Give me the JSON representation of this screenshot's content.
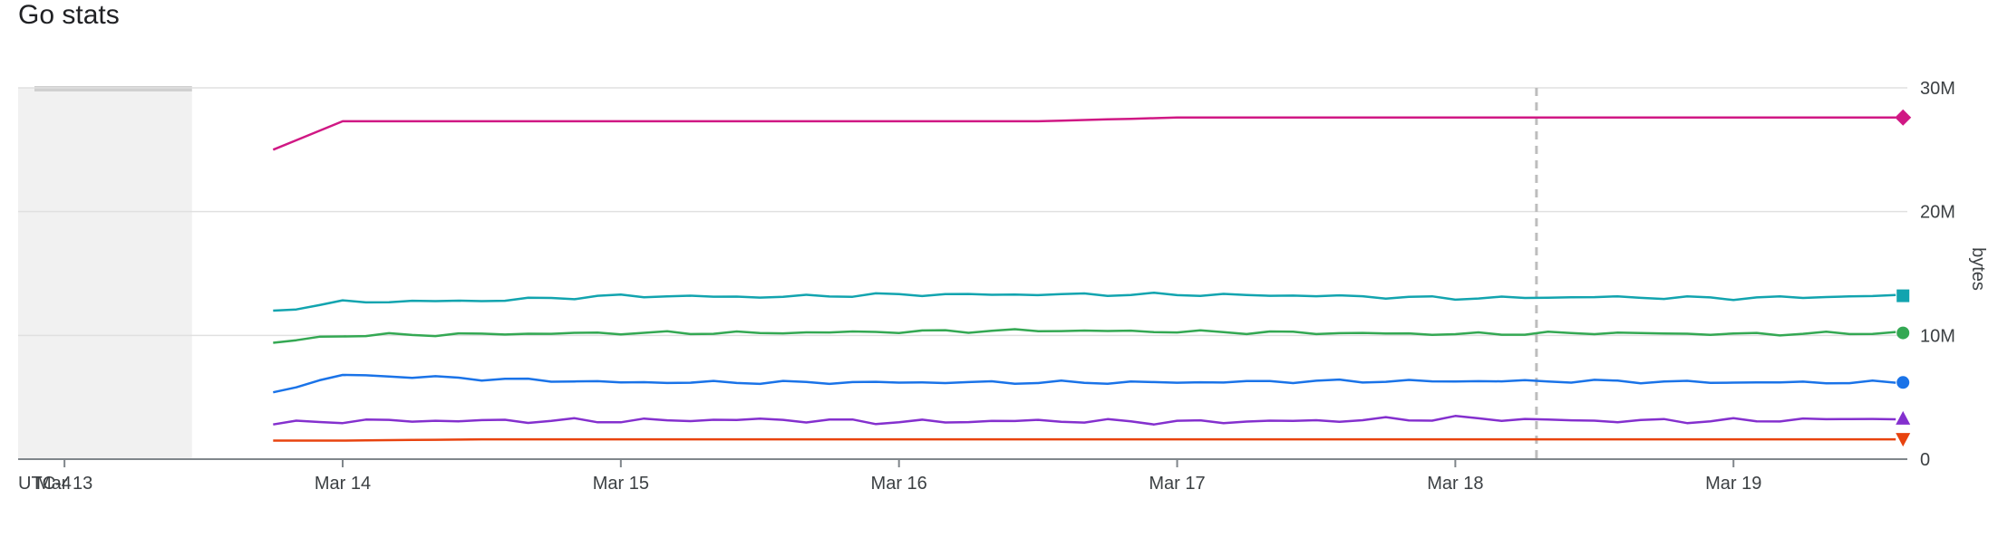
{
  "page": {
    "title": "Go stats"
  },
  "chart_data": {
    "type": "line",
    "title": "Go stats",
    "timezone_label": "UTC-4",
    "ylabel": "bytes",
    "ylim": [
      0,
      30000000
    ],
    "y_ticks": [
      {
        "value": 0,
        "label": "0"
      },
      {
        "value": 10000000,
        "label": "10M"
      },
      {
        "value": 20000000,
        "label": "20M"
      },
      {
        "value": 30000000,
        "label": "30M"
      }
    ],
    "x_ticks": [
      "Mar 13",
      "Mar 14",
      "Mar 15",
      "Mar 16",
      "Mar 17",
      "Mar 18",
      "Mar 19"
    ],
    "xlim": [
      "Mar 12 20:00",
      "Mar 19 15:00"
    ],
    "no_data_region": [
      "Mar 12 20:00",
      "Mar 13 11:00"
    ],
    "cursor_time": "Mar 18 07:00",
    "grid": true,
    "x": [
      "Mar 13 18:00",
      "Mar 14 00:00",
      "Mar 14 12:00",
      "Mar 15 00:00",
      "Mar 15 12:00",
      "Mar 16 00:00",
      "Mar 16 12:00",
      "Mar 17 00:00",
      "Mar 17 12:00",
      "Mar 18 00:00",
      "Mar 18 12:00",
      "Mar 19 00:00",
      "Mar 19 14:00"
    ],
    "series": [
      {
        "color": "#d01884",
        "marker": "diamond",
        "values": [
          25000000,
          27300000,
          27300000,
          27300000,
          27300000,
          27300000,
          27300000,
          27600000,
          27600000,
          27600000,
          27600000,
          27600000,
          27600000
        ]
      },
      {
        "color": "#12a4af",
        "marker": "square",
        "values": [
          12000000,
          12700000,
          12800000,
          13200000,
          13100000,
          13300000,
          13300000,
          13300000,
          13200000,
          13000000,
          13100000,
          13000000,
          13200000
        ]
      },
      {
        "color": "#34a853",
        "marker": "circle",
        "values": [
          9400000,
          10000000,
          10100000,
          10200000,
          10200000,
          10300000,
          10400000,
          10300000,
          10200000,
          10100000,
          10200000,
          10100000,
          10200000
        ]
      },
      {
        "color": "#1a73e8",
        "marker": "circle",
        "values": [
          5400000,
          6800000,
          6500000,
          6200000,
          6200000,
          6200000,
          6200000,
          6200000,
          6300000,
          6300000,
          6300000,
          6200000,
          6200000
        ]
      },
      {
        "color": "#8430ce",
        "marker": "triangle-up",
        "values": [
          2800000,
          3100000,
          3100000,
          3100000,
          3200000,
          3000000,
          3100000,
          3000000,
          3100000,
          3300000,
          3100000,
          3100000,
          3300000
        ]
      },
      {
        "color": "#e8430f",
        "marker": "triangle-down",
        "values": [
          1500000,
          1500000,
          1600000,
          1600000,
          1600000,
          1600000,
          1600000,
          1600000,
          1600000,
          1600000,
          1600000,
          1600000,
          1600000
        ]
      }
    ]
  }
}
